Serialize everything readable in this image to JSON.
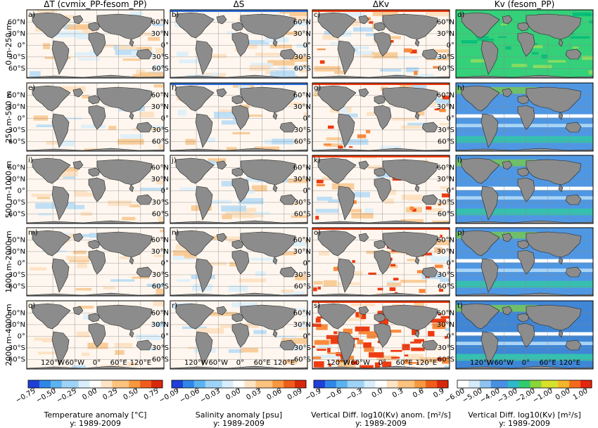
{
  "figure": {
    "column_titles": [
      "ΔT (cvmix_PP-fesom_PP)",
      "ΔS",
      "ΔKv",
      "Kv (fesom_PP)"
    ],
    "row_labels": [
      "0 m-250 m",
      "250 m-500 m",
      "500 m-1000 m",
      "1000 m-2000 m",
      "2000 m-4000 m"
    ],
    "panel_ids": [
      "a)",
      "b)",
      "c)",
      "d)",
      "e)",
      "f)",
      "g)",
      "h)",
      "i)",
      "j)",
      "k)",
      "l)",
      "m)",
      "n)",
      "o)",
      "p)",
      "q)",
      "r)",
      "s)",
      "t)"
    ],
    "lat_ticks": [
      "60°N",
      "30°N",
      "0°",
      "30°S",
      "60°S"
    ],
    "lon_ticks": [
      "120°W",
      "60°W",
      "0°",
      "60°E",
      "120°E"
    ]
  },
  "colorbars": [
    {
      "ticks": [
        "−0.75",
        "−0.50",
        "−0.25",
        "0.00",
        "0.25",
        "0.50",
        "0.75"
      ],
      "label": "Temperature anomaly [°C]",
      "period": "y: 1989-2009",
      "cmap": "diverging"
    },
    {
      "ticks": [
        "−0.09",
        "−0.06",
        "−0.03",
        "0.00",
        "0.03",
        "0.06",
        "0.09"
      ],
      "label": "Salinity anomaly [psu]",
      "period": "y: 1989-2009",
      "cmap": "diverging"
    },
    {
      "ticks": [
        "−0.9",
        "−0.6",
        "−0.3",
        "0.0",
        "0.3",
        "0.6",
        "0.9"
      ],
      "label": "Vertical Diff. log10(Kv) anom. [m²/s]",
      "period": "y: 1989-2009",
      "cmap": "diverging"
    },
    {
      "ticks": [
        "−6.00",
        "−5.00",
        "−4.00",
        "−3.00",
        "−2.00",
        "−1.00",
        "0.00",
        "1.00"
      ],
      "label": "Vertical Diff. log10(Kv) [m²/s]",
      "period": "y: 1989-2009",
      "cmap": "sequential"
    }
  ],
  "chart_data": {
    "type": "heatmap",
    "layout": "5 rows (depth layers) x 4 columns (variables) of global maps",
    "variables": [
      "ΔT",
      "ΔS",
      "ΔKv",
      "Kv"
    ],
    "depth_layers": [
      "0 m-250 m",
      "250 m-500 m",
      "500 m-1000 m",
      "1000 m-2000 m",
      "2000 m-4000 m"
    ],
    "value_ranges": {
      "ΔT": [
        -0.75,
        0.75
      ],
      "ΔS": [
        -0.09,
        0.09
      ],
      "ΔKv": [
        -0.9,
        0.9
      ],
      "Kv": [
        -6,
        1
      ]
    },
    "grid": true,
    "colors": {
      "land": "#8c8c8c",
      "ocean_neutral": "#fff7ef",
      "warm": "#f4a460",
      "cold": "#2e6fd8",
      "kv_blue": "#4a90e2",
      "kv_green": "#2ecc71",
      "strong_red": "#ee3b10"
    }
  }
}
